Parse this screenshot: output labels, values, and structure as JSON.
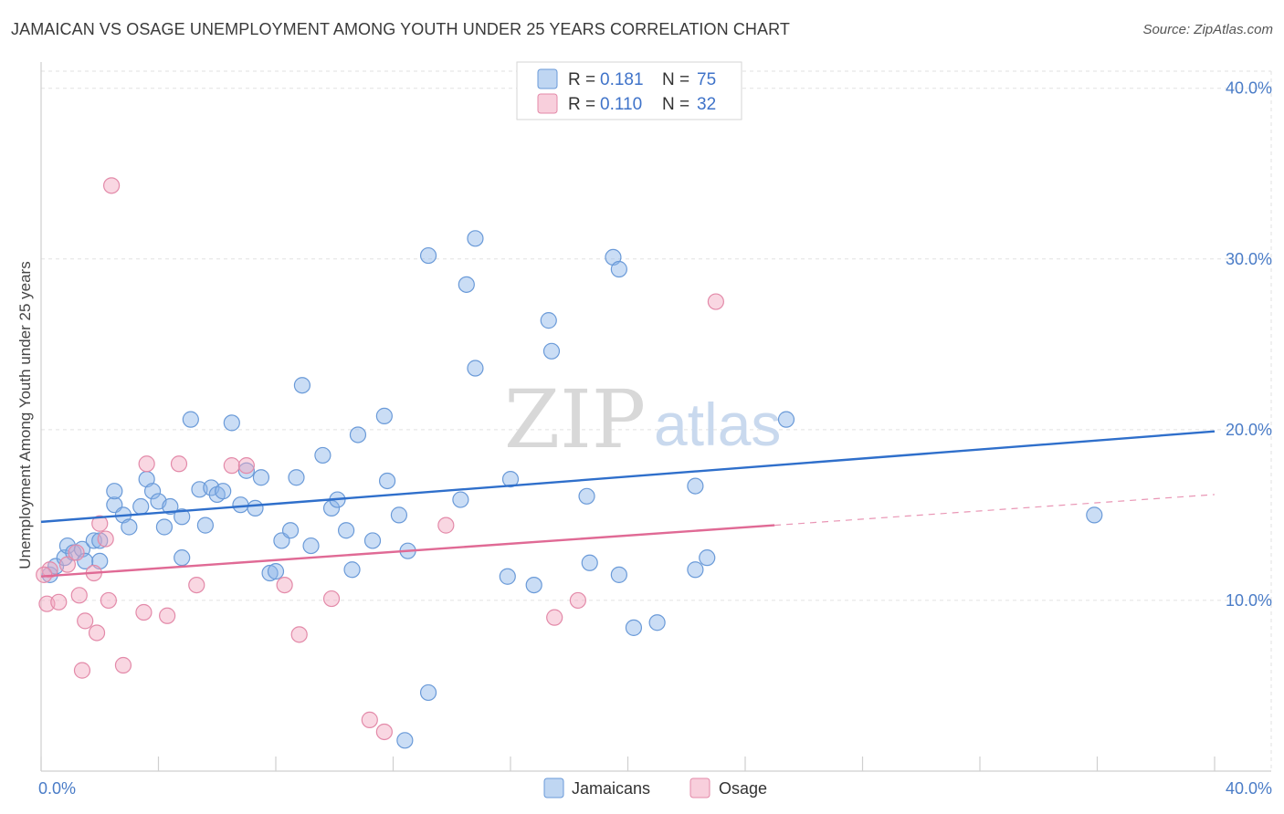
{
  "chart_data": {
    "type": "scatter",
    "title": "JAMAICAN VS OSAGE UNEMPLOYMENT AMONG YOUTH UNDER 25 YEARS CORRELATION CHART",
    "source": "Source: ZipAtlas.com",
    "ylabel": "Unemployment Among Youth under 25 years",
    "xlim": [
      0,
      40
    ],
    "ylim": [
      0,
      41
    ],
    "x_tick_labels": [
      "0.0%",
      "40.0%"
    ],
    "y_ticks": [
      10,
      20,
      30,
      40
    ],
    "y_tick_labels": [
      "10.0%",
      "20.0%",
      "30.0%",
      "40.0%"
    ],
    "watermark": {
      "zip": "ZIP",
      "atlas": "atlas"
    },
    "legend": {
      "r_label": "R =",
      "n_label": "N =",
      "entries": [
        {
          "name": "Jamaicans",
          "r": "0.181",
          "n": "75",
          "color": "#8ab4e8"
        },
        {
          "name": "Osage",
          "r": "0.110",
          "n": "32",
          "color": "#f2a7bf"
        }
      ]
    },
    "series": [
      {
        "name": "Jamaicans",
        "color": "#8ab4e8",
        "stroke": "#6a9ad8",
        "trend": {
          "x0": 0,
          "y0": 14.6,
          "x1": 40,
          "y1": 19.9,
          "color": "#2f6fcb"
        },
        "points": [
          [
            0.3,
            11.5
          ],
          [
            0.5,
            12.0
          ],
          [
            0.8,
            12.5
          ],
          [
            0.9,
            13.2
          ],
          [
            1.1,
            12.8
          ],
          [
            1.4,
            13.0
          ],
          [
            1.5,
            12.3
          ],
          [
            1.8,
            13.5
          ],
          [
            2.0,
            12.3
          ],
          [
            2.0,
            13.5
          ],
          [
            2.5,
            15.6
          ],
          [
            2.5,
            16.4
          ],
          [
            2.8,
            15.0
          ],
          [
            3.0,
            14.3
          ],
          [
            3.4,
            15.5
          ],
          [
            3.6,
            17.1
          ],
          [
            3.8,
            16.4
          ],
          [
            4.0,
            15.8
          ],
          [
            4.2,
            14.3
          ],
          [
            4.4,
            15.5
          ],
          [
            4.8,
            14.9
          ],
          [
            4.8,
            12.5
          ],
          [
            5.1,
            20.6
          ],
          [
            5.4,
            16.5
          ],
          [
            5.6,
            14.4
          ],
          [
            5.8,
            16.6
          ],
          [
            6.0,
            16.2
          ],
          [
            6.2,
            16.4
          ],
          [
            6.5,
            20.4
          ],
          [
            6.8,
            15.6
          ],
          [
            7.0,
            17.6
          ],
          [
            7.3,
            15.4
          ],
          [
            7.5,
            17.2
          ],
          [
            7.8,
            11.6
          ],
          [
            8.0,
            11.7
          ],
          [
            8.2,
            13.5
          ],
          [
            8.5,
            14.1
          ],
          [
            8.7,
            17.2
          ],
          [
            8.9,
            22.6
          ],
          [
            9.2,
            13.2
          ],
          [
            9.6,
            18.5
          ],
          [
            9.9,
            15.4
          ],
          [
            10.1,
            15.9
          ],
          [
            10.4,
            14.1
          ],
          [
            10.6,
            11.8
          ],
          [
            10.8,
            19.7
          ],
          [
            11.3,
            13.5
          ],
          [
            11.7,
            20.8
          ],
          [
            11.8,
            17.0
          ],
          [
            12.2,
            15.0
          ],
          [
            12.4,
            1.8
          ],
          [
            12.5,
            12.9
          ],
          [
            13.2,
            30.2
          ],
          [
            13.2,
            4.6
          ],
          [
            14.3,
            15.9
          ],
          [
            14.5,
            28.5
          ],
          [
            14.8,
            31.2
          ],
          [
            14.8,
            23.6
          ],
          [
            15.9,
            11.4
          ],
          [
            16.0,
            17.1
          ],
          [
            16.8,
            10.9
          ],
          [
            17.3,
            26.4
          ],
          [
            17.4,
            24.6
          ],
          [
            18.6,
            16.1
          ],
          [
            18.7,
            12.2
          ],
          [
            19.5,
            30.1
          ],
          [
            19.7,
            29.4
          ],
          [
            19.7,
            11.5
          ],
          [
            20.2,
            8.4
          ],
          [
            21.0,
            8.7
          ],
          [
            22.3,
            16.7
          ],
          [
            22.3,
            11.8
          ],
          [
            22.7,
            12.5
          ],
          [
            25.4,
            20.6
          ],
          [
            35.9,
            15.0
          ]
        ]
      },
      {
        "name": "Osage",
        "color": "#f2a7bf",
        "stroke": "#e38aa9",
        "trend": {
          "x0": 0,
          "y0": 11.4,
          "x1": 25,
          "y1": 14.4,
          "color": "#e06a95",
          "dash_x1": 40,
          "dash_y1": 16.2
        },
        "points": [
          [
            0.2,
            9.8
          ],
          [
            0.3,
            11.8
          ],
          [
            0.6,
            9.9
          ],
          [
            0.9,
            12.1
          ],
          [
            1.2,
            12.8
          ],
          [
            1.3,
            10.3
          ],
          [
            1.4,
            5.9
          ],
          [
            1.5,
            8.8
          ],
          [
            1.8,
            11.6
          ],
          [
            1.9,
            8.1
          ],
          [
            2.0,
            14.5
          ],
          [
            2.2,
            13.6
          ],
          [
            2.3,
            10.0
          ],
          [
            2.4,
            34.3
          ],
          [
            2.8,
            6.2
          ],
          [
            3.5,
            9.3
          ],
          [
            3.6,
            18.0
          ],
          [
            4.3,
            9.1
          ],
          [
            4.7,
            18.0
          ],
          [
            5.3,
            10.9
          ],
          [
            6.5,
            17.9
          ],
          [
            7.0,
            17.9
          ],
          [
            8.3,
            10.9
          ],
          [
            8.8,
            8.0
          ],
          [
            9.9,
            10.1
          ],
          [
            11.2,
            3.0
          ],
          [
            11.7,
            2.3
          ],
          [
            13.8,
            14.4
          ],
          [
            17.5,
            9.0
          ],
          [
            18.3,
            10.0
          ],
          [
            23.0,
            27.5
          ],
          [
            0.1,
            11.5
          ]
        ]
      }
    ]
  }
}
